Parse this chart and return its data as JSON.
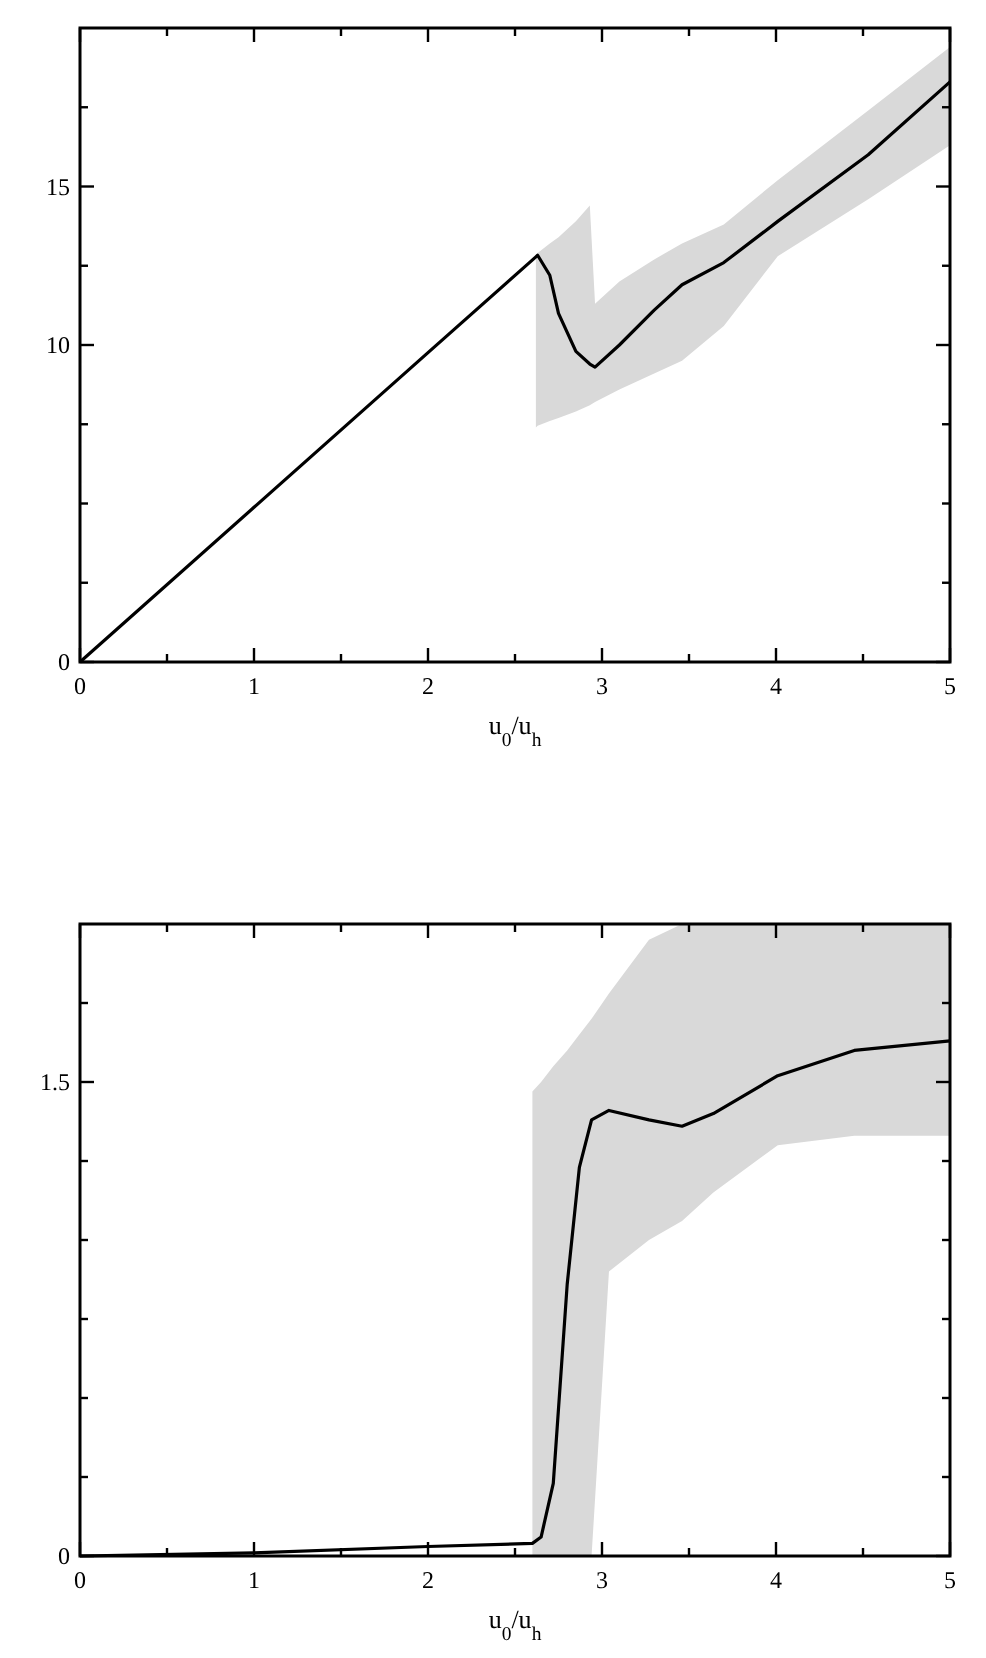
{
  "chart_data": [
    {
      "type": "line",
      "xlabel": "u$_{0}$/u$_{h}$",
      "xlim": [
        0,
        5
      ],
      "ylim": [
        0,
        20
      ],
      "xticks": [
        0,
        {
          "value": 0.5,
          "label": null
        },
        1,
        {
          "value": 1.5,
          "label": null
        },
        2,
        {
          "value": 2.5,
          "label": null
        },
        3,
        {
          "value": 3.5,
          "label": null
        },
        4,
        {
          "value": 4.5,
          "label": null
        },
        5
      ],
      "yticks": [
        0,
        {
          "value": 2.5,
          "label": null
        },
        {
          "value": 5,
          "label": null
        },
        {
          "value": 7.5,
          "label": null
        },
        10,
        {
          "value": 12.5,
          "label": null
        },
        15,
        {
          "value": 17.5,
          "label": null
        }
      ],
      "series": [
        {
          "color": "#000000",
          "x": [
            0,
            1,
            2,
            2.62,
            2.63,
            2.7,
            2.75,
            2.85,
            2.93,
            2.96,
            3.1,
            3.3,
            3.46,
            3.7,
            4.01,
            4.53,
            5
          ],
          "values": [
            0,
            4.88,
            9.76,
            12.78,
            12.83,
            12.2,
            11.0,
            9.8,
            9.4,
            9.3,
            10.0,
            11.1,
            11.9,
            12.6,
            13.9,
            16.0,
            18.3
          ],
          "lower": [
            null,
            null,
            null,
            7.4,
            7.45,
            7.6,
            7.7,
            7.9,
            8.1,
            8.2,
            8.6,
            9.1,
            9.5,
            10.6,
            12.8,
            14.6,
            16.3
          ],
          "upper": [
            null,
            null,
            null,
            12.8,
            12.9,
            13.2,
            13.4,
            13.9,
            14.4,
            11.3,
            12.0,
            12.7,
            13.2,
            13.8,
            15.2,
            17.4,
            19.4
          ]
        }
      ]
    },
    {
      "type": "line",
      "xlabel": "u$_{0}$/u$_{h}$",
      "xlim": [
        0,
        5
      ],
      "ylim": [
        0,
        2
      ],
      "xticks": [
        0,
        {
          "value": 0.5,
          "label": null
        },
        1,
        {
          "value": 1.5,
          "label": null
        },
        2,
        {
          "value": 2.5,
          "label": null
        },
        3,
        {
          "value": 3.5,
          "label": null
        },
        4,
        {
          "value": 4.5,
          "label": null
        },
        5
      ],
      "yticks": [
        0,
        {
          "value": 0.25,
          "label": null
        },
        {
          "value": 0.5,
          "label": null
        },
        {
          "value": 0.75,
          "label": null
        },
        {
          "value": 1,
          "label": null
        },
        {
          "value": 1.25,
          "label": null
        },
        1.5,
        {
          "value": 1.75,
          "label": null
        }
      ],
      "series": [
        {
          "color": "#000000",
          "x": [
            0,
            1,
            2,
            2.6,
            2.65,
            2.72,
            2.8,
            2.87,
            2.94,
            3.04,
            3.27,
            3.46,
            3.64,
            4.01,
            4.45,
            5
          ],
          "values": [
            0,
            0.01,
            0.03,
            0.04,
            0.06,
            0.23,
            0.86,
            1.23,
            1.38,
            1.41,
            1.38,
            1.36,
            1.4,
            1.52,
            1.6,
            1.63
          ],
          "lower": [
            null,
            null,
            null,
            0,
            0,
            0,
            0,
            0,
            0,
            0.9,
            1.0,
            1.06,
            1.15,
            1.3,
            1.33,
            1.33
          ],
          "upper": [
            null,
            null,
            null,
            1.47,
            1.5,
            1.55,
            1.6,
            1.65,
            1.7,
            1.78,
            1.95,
            2.0,
            2.0,
            2.0,
            2.0,
            2.0
          ]
        }
      ]
    }
  ]
}
